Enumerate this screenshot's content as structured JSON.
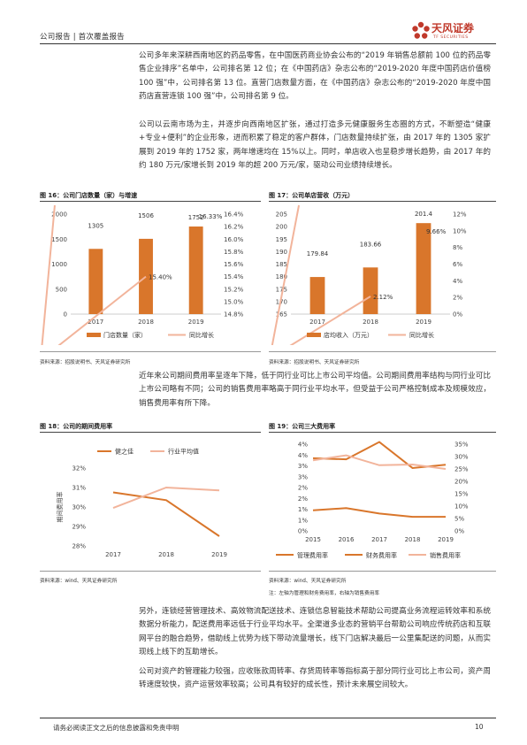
{
  "header": {
    "left": "公司报告 | 首次覆盖报告",
    "brand": "天风证券",
    "brand_en": "TF SECURITIES"
  },
  "paragraphs": [
    "公司多年来深耕西南地区的药品零售，在中国医药商业协会公布的“2019 年销售总额前 100 位的药品零售企业排序”名单中，公司排名第 12 位；在《中国药店》杂志公布的“2019-2020 年度中国药店价值榜 100 强”中，公司排名第 13 位。直营门店数量方面，在《中国药店》杂志公布的“2019-2020 年度中国药店直营连锁 100 强”中，公司排名第 9 位。",
    "公司以云南市场为主，并逐步向西南地区扩张，通过打造多元健康服务生态圈的方式，不断塑造“健康+专业+便利”的企业形象，进而积累了稳定的客户群体，门店数量持续扩张，由 2017 年的 1305 家扩展到 2019 年的 1752 家，两年增速均在 15%以上。同时，单店收入也呈稳步增长趋势，由 2017 年的约 180 万元/家增长到 2019 年的超 200 万元/家，驱动公司业绩持续增长。",
    "近年来公司期间费用率呈逐年下降，低于同行业可比上市公司平均值。公司期间费用率结构与同行业可比上市公司略有不同；公司的销售费用率略高于同行业平均水平，但受益于公司严格控制成本及规模效应，销售费用率有所下降。",
    "另外，连锁经营管理技术、高效物流配送技术、连锁信息智能技术帮助公司提高业务流程运转效率和系统数据分析能力，配送费用率远低于行业平均水平。全渠道多业态的营销平台帮助公司响应传统药店和互联网平台的融合趋势，借助线上优势为线下带动流量增长，线下门店解决最后一公里集配送的问题，从而实现线上线下的互助增长。",
    "公司对资产的管理能力较强，应收账款周转率、存货周转率等指标高于部分同行业可比上市公司，资产周转速度较快，资产运营效率较高；公司具有较好的成长性，预计未来展空间较大。"
  ],
  "figures": {
    "f16": {
      "title": "图 16：公司门店数量（家）与增速",
      "source": "资料来源：招股说明书、天风证券研究所"
    },
    "f17": {
      "title": "图 17：公司单店营收（万元）",
      "source": "资料来源：招股说明书、天风证券研究所"
    },
    "f18": {
      "title": "图 18：公司的期间费用率",
      "source": "资料来源：wind、天风证券研究所"
    },
    "f19": {
      "title": "图 19：公司三大费用率",
      "source": "资料来源：wind、天风证券研究所",
      "note": "注：左轴为管理和财务费用率，右轴为销售费用率"
    }
  },
  "chart_data": [
    {
      "type": "bar",
      "id": "f16",
      "categories": [
        "2017",
        "2018",
        "2019"
      ],
      "series": [
        {
          "name": "门店数量（家）",
          "type": "bar",
          "axis": "left",
          "values": [
            1305,
            1506,
            1752
          ],
          "color": "#d9762b"
        },
        {
          "name": "同比增长",
          "type": "line",
          "axis": "right",
          "values": [
            null,
            15.4,
            16.33
          ],
          "color": "#f2b49b"
        }
      ],
      "ylim_left": [
        0,
        2000
      ],
      "yticks_left": [
        "0",
        "500",
        "1000",
        "1500",
        "2000"
      ],
      "ylim_right": [
        14.8,
        16.4
      ],
      "yticks_right": [
        "14.8%",
        "15.0%",
        "15.2%",
        "15.4%",
        "15.6%",
        "15.8%",
        "16.0%",
        "16.2%",
        "16.4%"
      ],
      "bar_labels": [
        "1305",
        "1506",
        "1752"
      ],
      "line_labels": [
        "",
        "15.40%",
        "16.33%"
      ],
      "legend": "bottom"
    },
    {
      "type": "bar",
      "id": "f17",
      "categories": [
        "2017",
        "2018",
        "2019"
      ],
      "series": [
        {
          "name": "店均收入（万元）",
          "type": "bar",
          "axis": "left",
          "values": [
            179.84,
            183.66,
            201.4
          ],
          "color": "#d9762b"
        },
        {
          "name": "同比增长",
          "type": "line",
          "axis": "right",
          "values": [
            null,
            2.12,
            9.66
          ],
          "color": "#f2b49b"
        }
      ],
      "ylim_left": [
        165,
        205
      ],
      "yticks_left": [
        "165",
        "170",
        "175",
        "180",
        "185",
        "190",
        "195",
        "200",
        "205"
      ],
      "ylim_right": [
        0,
        12
      ],
      "yticks_right": [
        "0%",
        "2%",
        "4%",
        "6%",
        "8%",
        "10%",
        "12%"
      ],
      "bar_labels": [
        "179.84",
        "183.66",
        "201.4"
      ],
      "line_labels": [
        "",
        "2.12%",
        "9.66%"
      ],
      "legend": "bottom"
    },
    {
      "type": "line",
      "id": "f18",
      "x": [
        "2017",
        "2018",
        "2019"
      ],
      "series": [
        {
          "name": "健之佳",
          "values": [
            30.75,
            30.35,
            28.5
          ],
          "color": "#d9762b"
        },
        {
          "name": "行业平均值",
          "values": [
            29.95,
            31.0,
            30.85
          ],
          "color": "#f2b49b"
        }
      ],
      "ylabel": "期间费用率",
      "ylim": [
        28,
        32
      ],
      "yticks": [
        "28%",
        "29%",
        "30%",
        "31%",
        "32%"
      ],
      "legend": "top"
    },
    {
      "type": "line",
      "id": "f19",
      "x": [
        "2015",
        "2016",
        "2017",
        "2018",
        "2019"
      ],
      "series": [
        {
          "name": "管理费用率",
          "axis": "left",
          "values": [
            3.35,
            3.3,
            4.1,
            2.9,
            3.05
          ],
          "color": "#d9762b"
        },
        {
          "name": "财务费用率",
          "axis": "left",
          "values": [
            0.95,
            1.05,
            0.8,
            0.65,
            0.65
          ],
          "color": "#d9762b"
        },
        {
          "name": "销售费用率",
          "axis": "right",
          "values": [
            28.5,
            30.5,
            26.5,
            26.8,
            25.0
          ],
          "color": "#f2b49b"
        }
      ],
      "ylim_left": [
        0,
        4
      ],
      "yticks_left": [
        "0%",
        "1%",
        "1%",
        "2%",
        "2%",
        "3%",
        "3%",
        "4%",
        "4%"
      ],
      "ylim_right": [
        0,
        35
      ],
      "yticks_right": [
        "0%",
        "5%",
        "10%",
        "15%",
        "20%",
        "25%",
        "30%",
        "35%"
      ],
      "legend": "bottom"
    }
  ],
  "footer": {
    "disclaimer": "请务必阅读正文之后的信息披露和免责申明",
    "page": "10"
  }
}
